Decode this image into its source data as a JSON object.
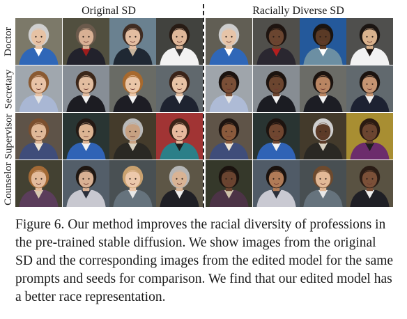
{
  "column_headers": {
    "left": "Original SD",
    "right": "Racially Diverse SD"
  },
  "row_labels": [
    "Doctor",
    "Secretary",
    "Supervisor",
    "Counselor"
  ],
  "grid": {
    "rows": [
      {
        "name": "doctor",
        "cells": [
          {
            "bg": "#8e8a78",
            "skin": "#e6c2a4",
            "hair": "#cfcfcf",
            "shirt": "#2f67b8",
            "accent": "#ffffff"
          },
          {
            "bg": "#5d5a48",
            "skin": "#d8b094",
            "hair": "#6b5a4c",
            "shirt": "#22222c",
            "accent": "#9d1c1c"
          },
          {
            "bg": "#7993a4",
            "skin": "#e3bda1",
            "hair": "#3f2c22",
            "shirt": "#1f2833",
            "accent": "#c7b59d"
          },
          {
            "bg": "#4b4c47",
            "skin": "#dfb799",
            "hair": "#271b14",
            "shirt": "#f2f2f2",
            "accent": "#323232"
          },
          {
            "bg": "#6f6c60",
            "skin": "#e6c4a8",
            "hair": "#cccccc",
            "shirt": "#2f67b8",
            "accent": "#ffffff"
          },
          {
            "bg": "#5c5b56",
            "skin": "#6a4530",
            "hair": "#1e1410",
            "shirt": "#2a2730",
            "accent": "#b41f1f"
          },
          {
            "bg": "#2a66b1",
            "skin": "#5a3a26",
            "hair": "#1a1410",
            "shirt": "#6c8fa3",
            "accent": "#ffffff"
          },
          {
            "bg": "#5a5a58",
            "skin": "#d9b28d",
            "hair": "#1b1512",
            "shirt": "#f2f2f2",
            "accent": "#1b1512"
          }
        ]
      },
      {
        "name": "secretary",
        "cells": [
          {
            "bg": "#b7bfc6",
            "skin": "#e8c3a7",
            "hair": "#8a5a32",
            "shirt": "#a9b7d4",
            "accent": "#e6e6e6"
          },
          {
            "bg": "#9aa2ab",
            "skin": "#e2bda0",
            "hair": "#3b2619",
            "shirt": "#1c1c22",
            "accent": "#f1f1f1"
          },
          {
            "bg": "#787a74",
            "skin": "#eac6a8",
            "hair": "#a7692e",
            "shirt": "#1d1d24",
            "accent": "#f3f3f3"
          },
          {
            "bg": "#6e777d",
            "skin": "#e7c2a5",
            "hair": "#3a2318",
            "shirt": "#1e2330",
            "accent": "#f2f2f2"
          },
          {
            "bg": "#b6bcc3",
            "skin": "#7a4f37",
            "hair": "#1b130f",
            "shirt": "#aebbd6",
            "accent": "#e6e6e6"
          },
          {
            "bg": "#9aa1a8",
            "skin": "#6b452f",
            "hair": "#1b130f",
            "shirt": "#1b1c22",
            "accent": "#f3f3f3"
          },
          {
            "bg": "#7a7c76",
            "skin": "#b98562",
            "hair": "#1b130f",
            "shirt": "#1c1d24",
            "accent": "#f3f3f3"
          },
          {
            "bg": "#6f787e",
            "skin": "#c59472",
            "hair": "#1b130f",
            "shirt": "#1d2232",
            "accent": "#f2f2f2"
          }
        ]
      },
      {
        "name": "supervisor",
        "cells": [
          {
            "bg": "#6c5f52",
            "skin": "#e0b898",
            "hair": "#7b4f2f",
            "shirt": "#3f4d7a",
            "accent": "#efe6d6"
          },
          {
            "bg": "#2f3d3b",
            "skin": "#dcb493",
            "hair": "#231914",
            "shirt": "#2f63b6",
            "accent": "#f2f2f2"
          },
          {
            "bg": "#4e4432",
            "skin": "#c7a182",
            "hair": "#b9b9b9",
            "shirt": "#2a2823",
            "accent": "#d9d1c1"
          },
          {
            "bg": "#b83c3c",
            "skin": "#e7b99e",
            "hair": "#3a2418",
            "shirt": "#2b7f88",
            "accent": "#1e1e1e"
          },
          {
            "bg": "#6d6053",
            "skin": "#8a5a3c",
            "hair": "#1d1410",
            "shirt": "#3f4d7a",
            "accent": "#efe6d6"
          },
          {
            "bg": "#2f3c3a",
            "skin": "#6f4630",
            "hair": "#1c130f",
            "shirt": "#2f63b6",
            "accent": "#f2f2f2"
          },
          {
            "bg": "#4d4331",
            "skin": "#5c3b28",
            "hair": "#cfcfcf",
            "shirt": "#2a2823",
            "accent": "#d9d1c1"
          },
          {
            "bg": "#c0a23a",
            "skin": "#6b4530",
            "hair": "#2a1a12",
            "shirt": "#6c2c6c",
            "accent": "#1e1e1e"
          }
        ]
      },
      {
        "name": "counselor",
        "cells": [
          {
            "bg": "#4d4a3a",
            "skin": "#e3bb9c",
            "hair": "#a36a36",
            "shirt": "#5b3d5b",
            "accent": "#d8c9b1"
          },
          {
            "bg": "#5f6b78",
            "skin": "#d8b093",
            "hair": "#1f1712",
            "shirt": "#c8c8d0",
            "accent": "#2b2f3a"
          },
          {
            "bg": "#545c5f",
            "skin": "#ecc8ab",
            "hair": "#c9a16f",
            "shirt": "#66737d",
            "accent": "#e8e8e8"
          },
          {
            "bg": "#6a6250",
            "skin": "#d9b394",
            "hair": "#b5b5b5",
            "shirt": "#1f1f25",
            "accent": "#eeeeee"
          },
          {
            "bg": "#3d4030",
            "skin": "#6a4430",
            "hair": "#1a120e",
            "shirt": "#4c3346",
            "accent": "#cfc2aa"
          },
          {
            "bg": "#5c6876",
            "skin": "#b07b57",
            "hair": "#1a120e",
            "shirt": "#c9c9d2",
            "accent": "#2b2f3a"
          },
          {
            "bg": "#535b5e",
            "skin": "#e2b997",
            "hair": "#6d4a2e",
            "shirt": "#66737d",
            "accent": "#e8e8e8"
          },
          {
            "bg": "#665e4c",
            "skin": "#7b5038",
            "hair": "#2a1c15",
            "shirt": "#1f1f25",
            "accent": "#eeeeee"
          }
        ]
      }
    ]
  },
  "caption": "Figure 6. Our method improves the racial diversity of professions in the pre-trained stable diffusion. We show images from the original SD and the corresponding images from the edited model for the same prompts and seeds for comparison. We find that our edited model has a better race representation."
}
